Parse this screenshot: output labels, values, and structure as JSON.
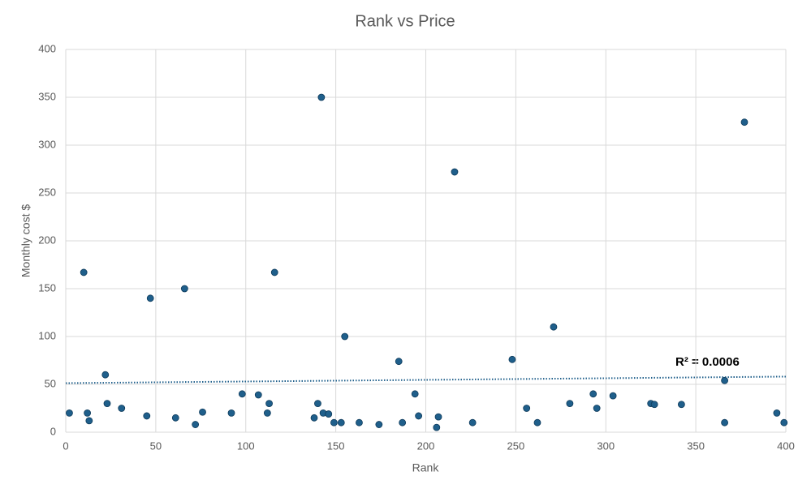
{
  "chart_data": {
    "type": "scatter",
    "title": "Rank vs Price",
    "x_label": "Rank",
    "y_label": "Monthly cost $",
    "annotation": "R² = 0.0006",
    "series": [
      {
        "name": "Monthly cost",
        "color": "#1f5f8b",
        "x": [
          2,
          10,
          12,
          13,
          22,
          23,
          31,
          45,
          47,
          61,
          66,
          72,
          76,
          92,
          98,
          107,
          112,
          113,
          116,
          138,
          140,
          142,
          143,
          146,
          149,
          153,
          155,
          163,
          174,
          185,
          187,
          194,
          196,
          206,
          207,
          216,
          226,
          248,
          256,
          262,
          271,
          280,
          293,
          295,
          304,
          325,
          327,
          342,
          366,
          366,
          377,
          395,
          399
        ],
        "values": [
          20,
          167,
          20,
          12,
          60,
          30,
          25,
          17,
          140,
          15,
          150,
          8,
          21,
          20,
          40,
          39,
          20,
          30,
          167,
          15,
          30,
          350,
          20,
          19,
          10,
          10,
          100,
          10,
          8,
          74,
          10,
          40,
          17,
          5,
          16,
          272,
          10,
          76,
          25,
          10,
          110,
          30,
          40,
          25,
          38,
          30,
          29,
          29,
          10,
          54,
          324,
          20,
          10
        ]
      }
    ],
    "trendline": {
      "color": "#1f5f8b",
      "style": "dotted"
    },
    "xlim": [
      0,
      400
    ],
    "xticks": [
      0,
      50,
      100,
      150,
      200,
      250,
      300,
      350,
      400
    ],
    "ylim": [
      0,
      400
    ],
    "yticks": [
      0,
      50,
      100,
      150,
      200,
      250,
      300,
      350,
      400
    ],
    "grid": true
  }
}
